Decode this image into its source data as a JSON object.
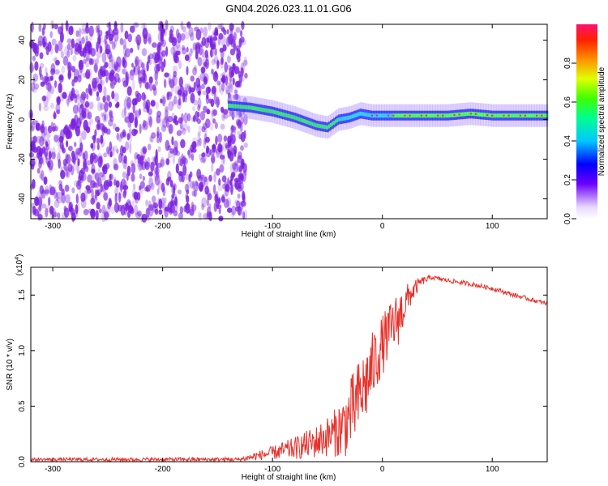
{
  "title": "GN04.2026.023.11.01.G06",
  "colors": {
    "snr_line": "#e8302a",
    "spectro_noise": "#7a1fe0",
    "spectro_ridge": "#e0c000"
  },
  "chart_data": [
    {
      "type": "heatmap",
      "name": "spectrogram",
      "xlabel": "Height of straight line (km)",
      "ylabel": "Frequency (Hz)",
      "xlim": [
        -320,
        150
      ],
      "ylim": [
        -50,
        48
      ],
      "x_ticks": [
        -300,
        -200,
        -100,
        0,
        100
      ],
      "x_tick_labels": [
        "-300",
        "-200",
        "-100",
        "0",
        "100"
      ],
      "y_ticks": [
        -40,
        -20,
        0,
        20,
        40
      ],
      "y_tick_labels": [
        "-40",
        "-20",
        "0",
        "20",
        "40"
      ],
      "noise_region_x": [
        -320,
        -130
      ],
      "ridge": {
        "x": [
          -140,
          -120,
          -100,
          -80,
          -60,
          -50,
          -40,
          -30,
          -20,
          -10,
          0,
          20,
          40,
          60,
          80,
          100,
          120,
          150
        ],
        "freq": [
          7,
          6,
          4,
          1,
          -3,
          -4,
          0,
          1,
          3,
          2,
          2,
          2,
          2,
          2,
          3,
          2,
          2,
          2
        ]
      }
    },
    {
      "type": "colorbar",
      "name": "amplitude-colorbar",
      "label": "Normalized spectral amplitude",
      "range": [
        0,
        1
      ],
      "ticks": [
        0.0,
        0.2,
        0.4,
        0.6,
        0.8
      ],
      "tick_labels": [
        "0.0",
        "0.2",
        "0.4",
        "0.6",
        "0.8"
      ]
    },
    {
      "type": "line",
      "name": "snr",
      "xlabel": "Height of straight line (km)",
      "ylabel": "SNR (10 * v/v)",
      "scale_label": "(x10",
      "scale_exp": "4",
      "scale_close": ")",
      "xlim": [
        -320,
        150
      ],
      "ylim": [
        0,
        1.75
      ],
      "x_ticks": [
        -300,
        -200,
        -100,
        0,
        100
      ],
      "x_tick_labels": [
        "-300",
        "-200",
        "-100",
        "0",
        "100"
      ],
      "y_ticks": [
        0.0,
        0.5,
        1.0,
        1.5
      ],
      "y_tick_labels": [
        "0.0",
        "0.5",
        "1.0",
        "1.5"
      ],
      "envelope": {
        "x": [
          -320,
          -130,
          -115,
          -100,
          -80,
          -60,
          -45,
          -35,
          -25,
          -15,
          -5,
          5,
          15,
          25,
          35,
          45,
          60,
          80,
          100,
          120,
          150
        ],
        "mean": [
          0.02,
          0.02,
          0.05,
          0.08,
          0.12,
          0.18,
          0.25,
          0.32,
          0.5,
          0.7,
          0.95,
          1.15,
          1.3,
          1.5,
          1.62,
          1.66,
          1.63,
          1.6,
          1.56,
          1.5,
          1.42
        ],
        "spread": [
          0.015,
          0.02,
          0.04,
          0.06,
          0.1,
          0.15,
          0.2,
          0.3,
          0.35,
          0.35,
          0.3,
          0.25,
          0.25,
          0.12,
          0.04,
          0.02,
          0.02,
          0.02,
          0.02,
          0.02,
          0.02
        ]
      }
    }
  ]
}
